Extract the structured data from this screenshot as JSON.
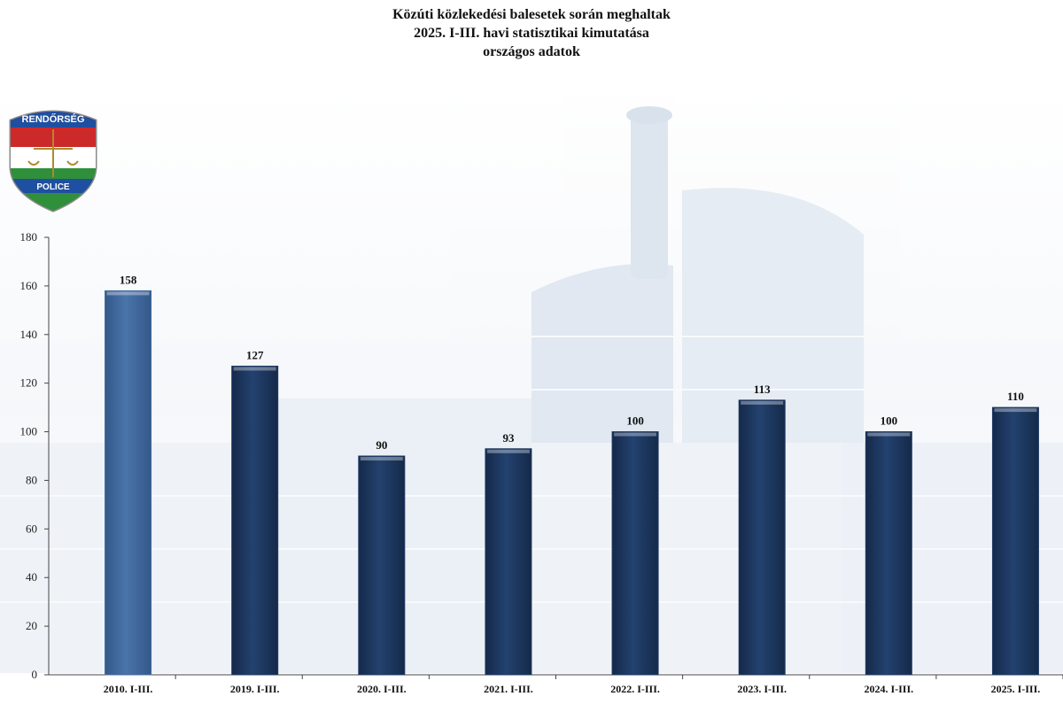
{
  "header": {
    "line1": "Közúti közlekedési balesetek során meghaltak",
    "line2": "2025. I-III. havi statisztikai kimutatása",
    "line3": "országos adatok"
  },
  "logo": {
    "top_text": "RENDŐRSÉG",
    "bottom_text": "POLICE"
  },
  "colors": {
    "bar_highlight": "#41699d",
    "bar_default": "#1e3a64",
    "axis": "#444444"
  },
  "chart_data": {
    "type": "bar",
    "title": "Közúti közlekedési balesetek során meghaltak 2025. I-III. havi statisztikai kimutatása országos adatok",
    "xlabel": "",
    "ylabel": "",
    "ylim": [
      0,
      180
    ],
    "yticks": [
      0,
      20,
      40,
      60,
      80,
      100,
      120,
      140,
      160,
      180
    ],
    "categories": [
      "2010. I-III.",
      "2019. I-III.",
      "2020. I-III.",
      "2021. I-III.",
      "2022. I-III.",
      "2023. I-III.",
      "2024. I-III.",
      "2025. I-III."
    ],
    "values": [
      158,
      127,
      90,
      93,
      100,
      113,
      100,
      110
    ],
    "highlight_index": 0,
    "grid": false,
    "legend": "none"
  }
}
